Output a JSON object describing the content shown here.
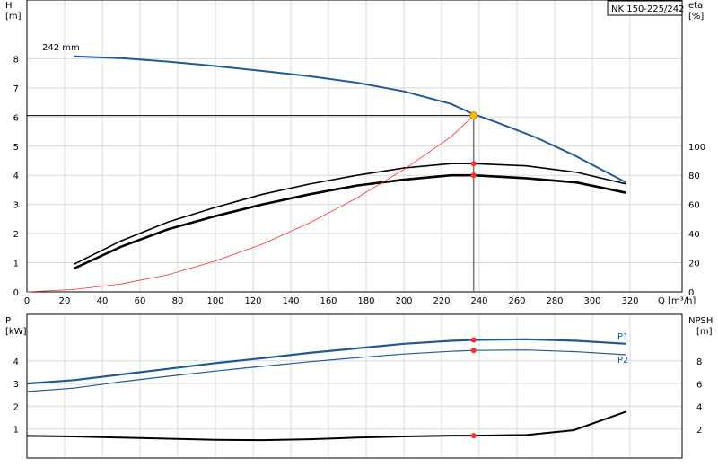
{
  "chart_data": [
    {
      "type": "line",
      "panel": "head-efficiency",
      "model_label": "NK 150-225/242",
      "impeller_label": "242 mm",
      "ylabel_left": "H",
      "ylabel_left_unit": "[m]",
      "ylabel_right": "eta",
      "ylabel_right_unit": "[%]",
      "xlabel": "Q [m³/h]",
      "xlim": [
        0,
        330
      ],
      "ylim_left": [
        0,
        9
      ],
      "ylim_right_ticks": [
        0,
        20,
        40,
        60,
        80,
        100
      ],
      "x_ticks": [
        0,
        20,
        40,
        60,
        80,
        100,
        120,
        140,
        160,
        180,
        200,
        220,
        240,
        260,
        280,
        300,
        320
      ],
      "y_left_ticks": [
        0,
        1,
        2,
        3,
        4,
        5,
        6,
        7,
        8
      ],
      "y_right_ticks": [
        0,
        20,
        40,
        60,
        80,
        100
      ],
      "operating_point": {
        "q": 237,
        "h": 6.05
      },
      "series": [
        {
          "axis": "left",
          "color": "#1f5a96",
          "x": [
            25,
            50,
            75,
            100,
            125,
            150,
            175,
            200,
            225,
            237,
            250,
            270,
            290,
            318
          ],
          "values": [
            8.08,
            8.02,
            7.9,
            7.75,
            7.58,
            7.4,
            7.18,
            6.88,
            6.45,
            6.1,
            5.8,
            5.3,
            4.7,
            3.75
          ]
        },
        {
          "axis": "right",
          "color": "#000000",
          "x": [
            25,
            50,
            75,
            100,
            125,
            150,
            175,
            200,
            225,
            237,
            265,
            292,
            318
          ],
          "values": [
            19,
            35,
            48,
            58,
            67,
            74,
            80,
            85,
            88,
            88,
            86.5,
            82,
            74
          ],
          "marker_at": {
            "x": 237,
            "value": 88
          }
        },
        {
          "axis": "right",
          "color": "#000000",
          "x": [
            25,
            50,
            75,
            100,
            125,
            150,
            175,
            200,
            225,
            237,
            265,
            292,
            318
          ],
          "values": [
            16,
            31,
            43,
            52,
            60,
            67,
            73,
            77,
            80,
            80,
            78,
            75,
            68
          ],
          "marker_at": {
            "x": 237,
            "value": 80
          }
        },
        {
          "axis": "left",
          "color": "#ff2a2a",
          "x": [
            0,
            25,
            50,
            75,
            100,
            125,
            150,
            175,
            200,
            225,
            237
          ],
          "values": [
            0,
            0.08,
            0.27,
            0.59,
            1.06,
            1.64,
            2.37,
            3.22,
            4.2,
            5.32,
            6.05
          ]
        }
      ]
    },
    {
      "type": "line",
      "panel": "power-npsh",
      "ylabel_left": "P",
      "ylabel_left_unit": "[kW]",
      "ylabel_right": "NPSH",
      "ylabel_right_unit": "[m]",
      "xlim": [
        0,
        330
      ],
      "ylim_left": [
        0,
        5.0
      ],
      "y_left_ticks": [
        1,
        2,
        3,
        4
      ],
      "y_right_ticks": [
        2,
        4,
        6,
        8
      ],
      "series": [
        {
          "name": "P1",
          "axis": "left",
          "color": "#1f5a96",
          "x": [
            0,
            25,
            50,
            75,
            100,
            125,
            150,
            175,
            200,
            225,
            237,
            265,
            292,
            318
          ],
          "values": [
            3.0,
            3.15,
            3.4,
            3.65,
            3.9,
            4.12,
            4.35,
            4.55,
            4.75,
            4.88,
            4.92,
            4.95,
            4.88,
            4.75
          ],
          "marker_at": {
            "x": 237,
            "value": 4.92
          }
        },
        {
          "name": "P2",
          "axis": "left",
          "color": "#1f5a96",
          "x": [
            0,
            25,
            50,
            75,
            100,
            125,
            150,
            175,
            200,
            225,
            237,
            265,
            292,
            318
          ],
          "values": [
            2.65,
            2.8,
            3.08,
            3.32,
            3.55,
            3.76,
            3.96,
            4.14,
            4.3,
            4.42,
            4.46,
            4.48,
            4.4,
            4.27
          ],
          "marker_at": {
            "x": 237,
            "value": 4.46
          }
        },
        {
          "axis": "right",
          "color": "#000000",
          "x": [
            0,
            25,
            50,
            75,
            100,
            125,
            150,
            175,
            200,
            225,
            237,
            265,
            290,
            318
          ],
          "values": [
            1.4,
            1.35,
            1.25,
            1.15,
            1.05,
            1.02,
            1.1,
            1.25,
            1.35,
            1.42,
            1.42,
            1.48,
            1.9,
            3.55
          ],
          "marker_at": {
            "x": 237,
            "value": 1.42
          }
        }
      ]
    }
  ]
}
